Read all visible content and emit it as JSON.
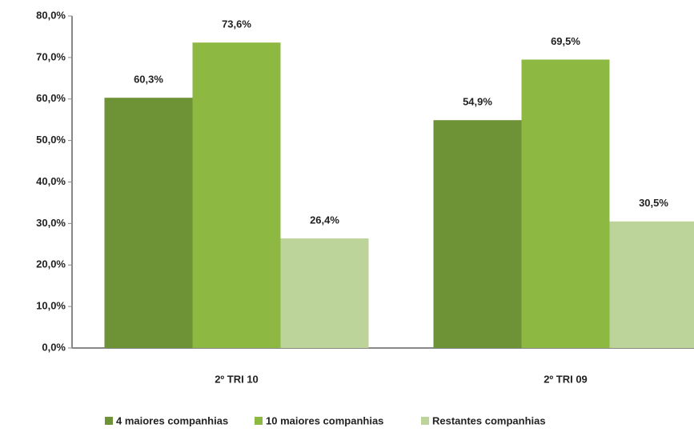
{
  "chart_data": {
    "type": "bar",
    "categories": [
      "2º TRI 10",
      "2º TRI 09"
    ],
    "series": [
      {
        "name": "4 maiores companhias",
        "color": "#6e9236",
        "values": [
          60.3,
          54.9
        ],
        "value_labels": [
          "60,3%",
          "54,9%"
        ]
      },
      {
        "name": "10 maiores companhias",
        "color": "#8db842",
        "values": [
          73.6,
          69.5
        ],
        "value_labels": [
          "73,6%",
          "69,5%"
        ]
      },
      {
        "name": "Restantes companhias",
        "color": "#bcd39a",
        "values": [
          26.4,
          30.5
        ],
        "value_labels": [
          "26,4%",
          "30,5%"
        ]
      }
    ],
    "ylim": [
      0,
      80
    ],
    "yticks": [
      {
        "value": 0,
        "label": "0,0%"
      },
      {
        "value": 10,
        "label": "10,0%"
      },
      {
        "value": 20,
        "label": "20,0%"
      },
      {
        "value": 30,
        "label": "30,0%"
      },
      {
        "value": 40,
        "label": "40,0%"
      },
      {
        "value": 50,
        "label": "50,0%"
      },
      {
        "value": 60,
        "label": "60,0%"
      },
      {
        "value": 70,
        "label": "70,0%"
      },
      {
        "value": 80,
        "label": "80,0%"
      }
    ],
    "legend": "bottom"
  }
}
